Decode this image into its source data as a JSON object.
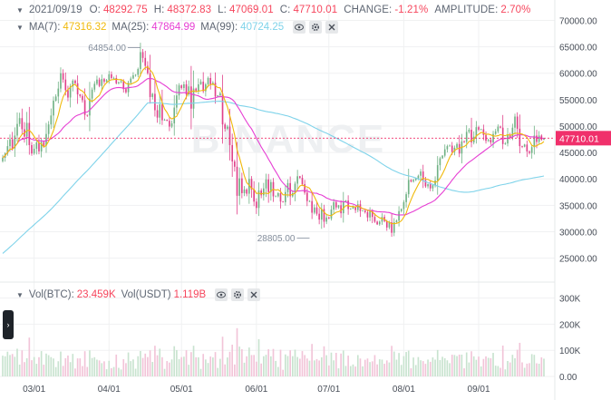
{
  "header": {
    "date": "2021/09/19",
    "o_label": "O:",
    "o_value": "48292.75",
    "h_label": "H:",
    "h_value": "48372.83",
    "l_label": "L:",
    "l_value": "47069.01",
    "c_label": "C:",
    "c_value": "47710.01",
    "change_label": "CHANGE:",
    "change_value": "-1.21%",
    "amp_label": "AMPLITUDE:",
    "amp_value": "2.70%"
  },
  "ma": {
    "ma7_label": "MA(7):",
    "ma7_value": "47316.32",
    "ma25_label": "MA(25):",
    "ma25_value": "47864.99",
    "ma99_label": "MA(99):",
    "ma99_value": "40724.25"
  },
  "volume": {
    "btc_label": "Vol(BTC):",
    "btc_value": "23.459K",
    "usdt_label": "Vol(USDT)",
    "usdt_value": "1.119B"
  },
  "icons": {
    "toggle": "chevron-down-icon",
    "eye": "eye-icon",
    "settings": "gear-icon",
    "close": "close-icon",
    "handle": "chevron-right-icon"
  },
  "watermark": "BINANCE",
  "colors": {
    "up": "#70b285",
    "down": "#e0418a",
    "ma7": "#f0b90b",
    "ma25": "#e63ed3",
    "ma99": "#7fd3ea",
    "last_price_bg": "#f0306b",
    "grid": "#f0f1f2"
  },
  "chart_data": [
    {
      "type": "candlestick",
      "y_ticks": [
        "70000.00",
        "65000.00",
        "60000.00",
        "55000.00",
        "50000.00",
        "45000.00",
        "40000.00",
        "35000.00",
        "30000.00",
        "25000.00"
      ],
      "ylim": [
        21500,
        71800
      ],
      "x_ticks": [
        "03/01",
        "04/01",
        "05/01",
        "06/01",
        "07/01",
        "08/01",
        "09/01"
      ],
      "last_price_label": "47710.01",
      "last_price": 47710.01,
      "annotations": [
        {
          "text": "64854.00",
          "value": 64854
        },
        {
          "text": "28805.00",
          "value": 28805
        }
      ],
      "ma_labels": [
        "MA(7)",
        "MA(25)",
        "MA(99)"
      ],
      "closes": [
        44000,
        44800,
        46200,
        47500,
        45800,
        48200,
        50400,
        51500,
        49400,
        48000,
        50600,
        46400,
        44800,
        45700,
        46900,
        45200,
        47000,
        46300,
        48500,
        50300,
        52000,
        54800,
        55600,
        57100,
        60000,
        58800,
        56800,
        55400,
        57500,
        58600,
        58100,
        56000,
        55700,
        54900,
        52100,
        52000,
        55200,
        56900,
        58000,
        58800,
        57600,
        58900,
        58400,
        58700,
        59800,
        59100,
        59100,
        58100,
        58300,
        58500,
        57000,
        56400,
        58200,
        59000,
        59600,
        59700,
        60800,
        64000,
        62900,
        61400,
        60000,
        55500,
        56100,
        53000,
        51600,
        54100,
        51100,
        51200,
        51000,
        49900,
        50500,
        53500,
        55800,
        57700,
        57200,
        57900,
        56000,
        57500,
        53300,
        57100,
        56700,
        57900,
        58400,
        56600,
        57900,
        59100,
        57900,
        58200,
        55600,
        55800,
        56200,
        50300,
        49500,
        49900,
        46400,
        43300,
        42300,
        36800,
        40100,
        37300,
        38000,
        37200,
        40000,
        38000,
        35700,
        34500,
        37800,
        36900,
        38200,
        39900,
        37500,
        39400,
        36700,
        36700,
        37300,
        35700,
        35600,
        37500,
        39200,
        36700,
        37300,
        39100,
        40500,
        40200,
        39000,
        37400,
        35800,
        35800,
        33600,
        34600,
        33400,
        32300,
        34300,
        31900,
        32700,
        32500,
        34200,
        35600,
        34600,
        35000,
        33500,
        35700,
        35900,
        34300,
        34400,
        34700,
        34100,
        35200,
        33900,
        34000,
        33700,
        32700,
        34000,
        32800,
        31900,
        31400,
        31900,
        32800,
        32000,
        30800,
        31800,
        29800,
        31800,
        32100,
        33900,
        34300,
        35600,
        37100,
        39800,
        39500,
        39800,
        40100,
        40600,
        41400,
        39800,
        38600,
        39000,
        38200,
        38800,
        39700,
        42600,
        43900,
        44400,
        45600,
        46200,
        46300,
        45100,
        45900,
        46600,
        44800,
        47100,
        47000,
        48900,
        49300,
        46900,
        48000,
        49800,
        49300,
        49400,
        48300,
        47200,
        47400,
        46900,
        48500,
        49000,
        49900,
        49700,
        46600,
        46700,
        48300,
        47800,
        49700,
        51800,
        49500,
        46200,
        46100,
        46500,
        45200,
        44900,
        46000,
        48200,
        47000,
        48200,
        47400,
        47700
      ],
      "volume_ticks": [
        "300K",
        "200K",
        "100K",
        "0.00"
      ],
      "volume_ylim": [
        0,
        330000
      ]
    }
  ]
}
